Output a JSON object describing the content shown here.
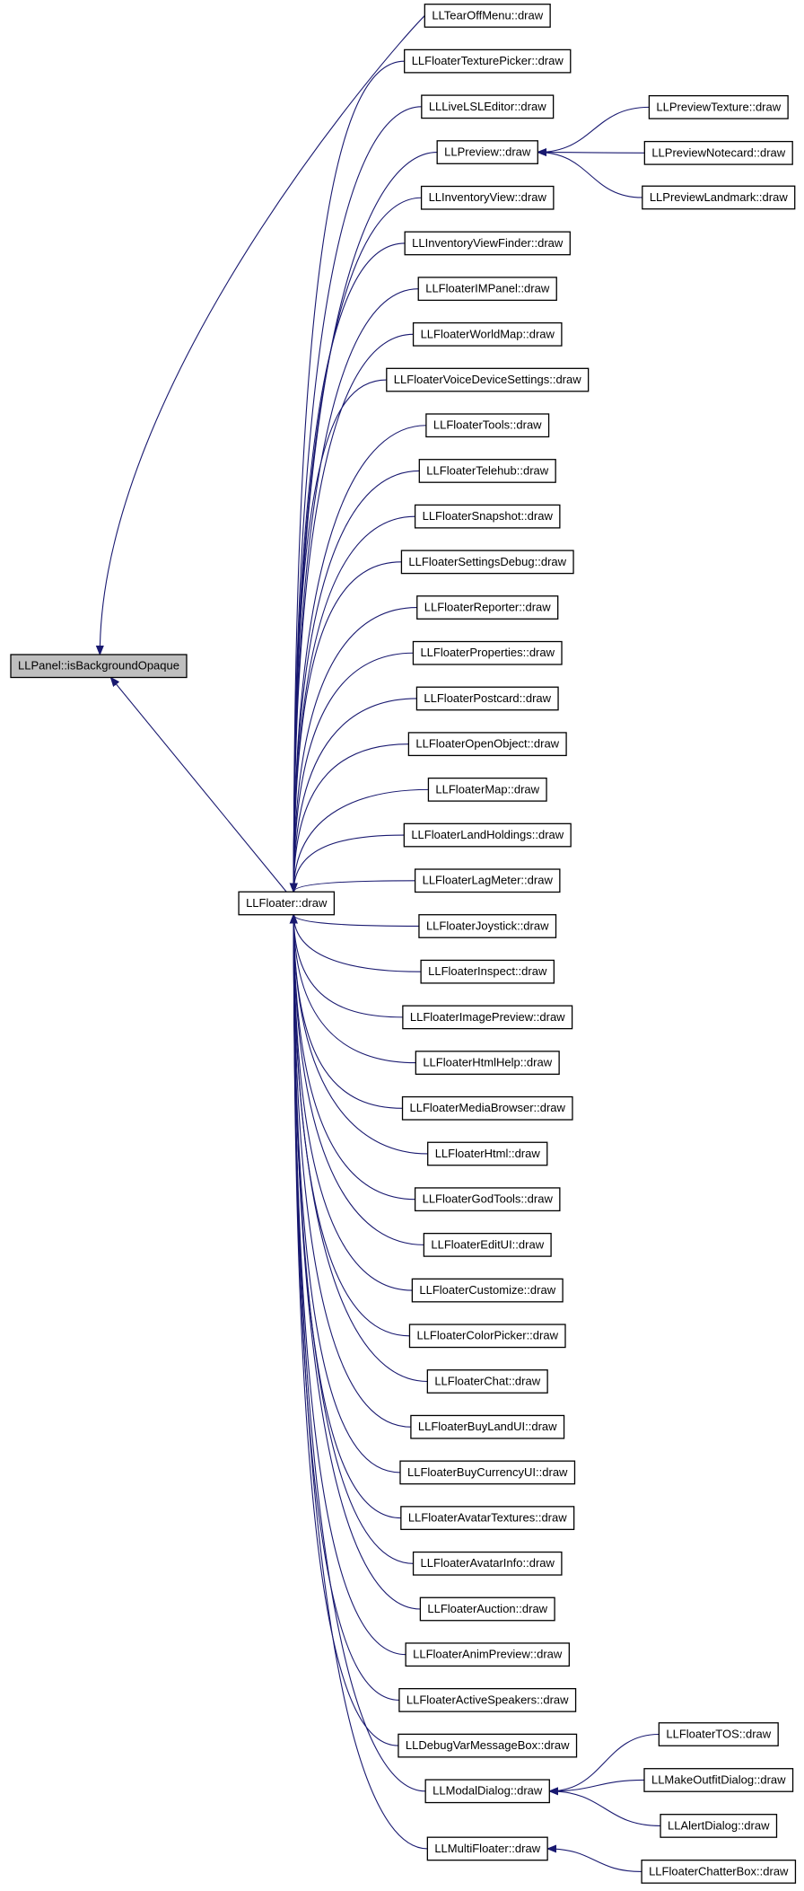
{
  "nodes": [
    {
      "label": "LLPanel::isBackgroundOpaque"
    },
    {
      "label": "LLFloater::draw"
    },
    {
      "label": "LLTearOffMenu::draw"
    },
    {
      "label": "LLFloaterTexturePicker::draw"
    },
    {
      "label": "LLLiveLSLEditor::draw"
    },
    {
      "label": "LLPreview::draw"
    },
    {
      "label": "LLInventoryView::draw"
    },
    {
      "label": "LLInventoryViewFinder::draw"
    },
    {
      "label": "LLFloaterIMPanel::draw"
    },
    {
      "label": "LLFloaterWorldMap::draw"
    },
    {
      "label": "LLFloaterVoiceDeviceSettings::draw"
    },
    {
      "label": "LLFloaterTools::draw"
    },
    {
      "label": "LLFloaterTelehub::draw"
    },
    {
      "label": "LLFloaterSnapshot::draw"
    },
    {
      "label": "LLFloaterSettingsDebug::draw"
    },
    {
      "label": "LLFloaterReporter::draw"
    },
    {
      "label": "LLFloaterProperties::draw"
    },
    {
      "label": "LLFloaterPostcard::draw"
    },
    {
      "label": "LLFloaterOpenObject::draw"
    },
    {
      "label": "LLFloaterMap::draw"
    },
    {
      "label": "LLFloaterLandHoldings::draw"
    },
    {
      "label": "LLFloaterLagMeter::draw"
    },
    {
      "label": "LLFloaterJoystick::draw"
    },
    {
      "label": "LLFloaterInspect::draw"
    },
    {
      "label": "LLFloaterImagePreview::draw"
    },
    {
      "label": "LLFloaterHtmlHelp::draw"
    },
    {
      "label": "LLFloaterMediaBrowser::draw"
    },
    {
      "label": "LLFloaterHtml::draw"
    },
    {
      "label": "LLFloaterGodTools::draw"
    },
    {
      "label": "LLFloaterEditUI::draw"
    },
    {
      "label": "LLFloaterCustomize::draw"
    },
    {
      "label": "LLFloaterColorPicker::draw"
    },
    {
      "label": "LLFloaterChat::draw"
    },
    {
      "label": "LLFloaterBuyLandUI::draw"
    },
    {
      "label": "LLFloaterBuyCurrencyUI::draw"
    },
    {
      "label": "LLFloaterAvatarTextures::draw"
    },
    {
      "label": "LLFloaterAvatarInfo::draw"
    },
    {
      "label": "LLFloaterAuction::draw"
    },
    {
      "label": "LLFloaterAnimPreview::draw"
    },
    {
      "label": "LLFloaterActiveSpeakers::draw"
    },
    {
      "label": "LLDebugVarMessageBox::draw"
    },
    {
      "label": "LLModalDialog::draw"
    },
    {
      "label": "LLMultiFloater::draw"
    },
    {
      "label": "LLPreviewTexture::draw"
    },
    {
      "label": "LLPreviewNotecard::draw"
    },
    {
      "label": "LLPreviewLandmark::draw"
    },
    {
      "label": "LLFloaterTOS::draw"
    },
    {
      "label": "LLMakeOutfitDialog::draw"
    },
    {
      "label": "LLAlertDialog::draw"
    },
    {
      "label": "LLFloaterChatterBox::draw"
    }
  ]
}
